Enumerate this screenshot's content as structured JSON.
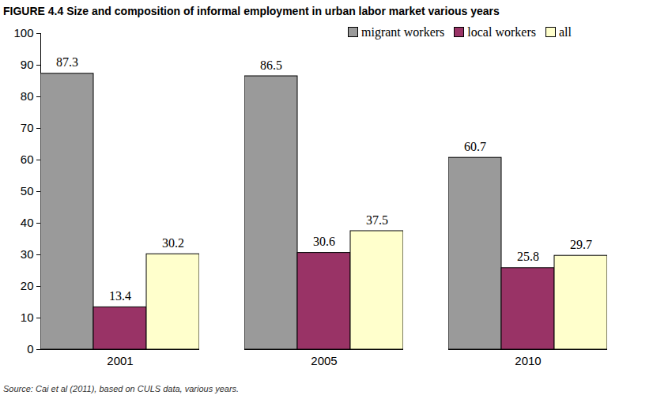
{
  "chart_data": {
    "type": "bar",
    "title": "FIGURE 4.4    Size and composition of informal employment in urban labor market various years",
    "caption": "Source: Cai et al (2011), based on CULS data, various years.",
    "categories": [
      "2001",
      "2005",
      "2010"
    ],
    "series": [
      {
        "name": "migrant workers",
        "color": "#9a9a9a",
        "values": [
          87.3,
          86.5,
          60.7
        ]
      },
      {
        "name": "local workers",
        "color": "#993366",
        "values": [
          13.4,
          30.6,
          25.8
        ]
      },
      {
        "name": "all",
        "color": "#ffffcc",
        "values": [
          30.2,
          37.5,
          29.7
        ]
      }
    ],
    "ylim": [
      0,
      100
    ],
    "yticks": [
      0,
      10,
      20,
      30,
      40,
      50,
      60,
      70,
      80,
      90,
      100
    ],
    "grid": false,
    "legend": "top-right",
    "data_labels": true
  }
}
